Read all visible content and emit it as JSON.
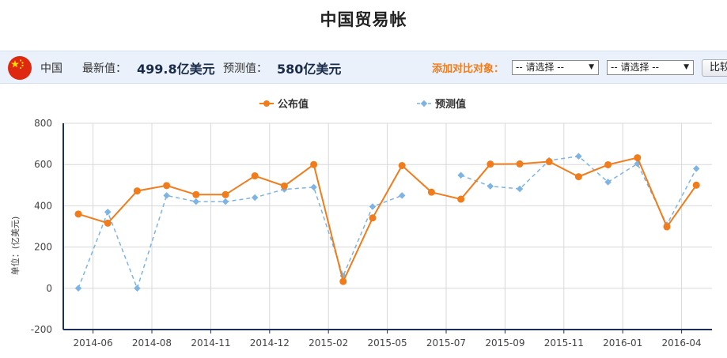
{
  "page": {
    "title": "中国贸易帐"
  },
  "info": {
    "country": "中国",
    "latest_label": "最新值：",
    "latest_value": "499.8亿美元",
    "forecast_label": "预测值：",
    "forecast_value": "580亿美元",
    "compare_label": "添加对比对象：",
    "select1": "-- 请选择 --",
    "select2": "-- 请选择 --",
    "compare_button": "比较"
  },
  "colors": {
    "published": "#f07c1c",
    "forecast": "#7eb4e3",
    "axis": "#1f2d5c"
  },
  "chart_data": {
    "type": "line",
    "title": "",
    "ylabel": "单位：(亿美元)",
    "xlabel": "",
    "ylim": [
      -200,
      800
    ],
    "yticks": [
      -200,
      0,
      200,
      400,
      600,
      800
    ],
    "xticks": [
      "2014-06",
      "2014-08",
      "2014-11",
      "2014-12",
      "2015-02",
      "2015-05",
      "2015-07",
      "2015-09",
      "2015-11",
      "2016-01",
      "2016-04"
    ],
    "grid": true,
    "legend_position": "top",
    "series": [
      {
        "name": "公布值",
        "style": "solid",
        "marker": "circle",
        "values": [
          360,
          316,
          472,
          498,
          454,
          454,
          545,
          496,
          600,
          33,
          341,
          595,
          466,
          432,
          602,
          603,
          614,
          541,
          599,
          633,
          298,
          500
        ]
      },
      {
        "name": "预测值",
        "style": "dashed",
        "marker": "diamond",
        "values": [
          0,
          370,
          0,
          450,
          420,
          420,
          440,
          480,
          490,
          60,
          396,
          450,
          null,
          548,
          495,
          482,
          620,
          640,
          515,
          604,
          308,
          580
        ]
      }
    ]
  }
}
